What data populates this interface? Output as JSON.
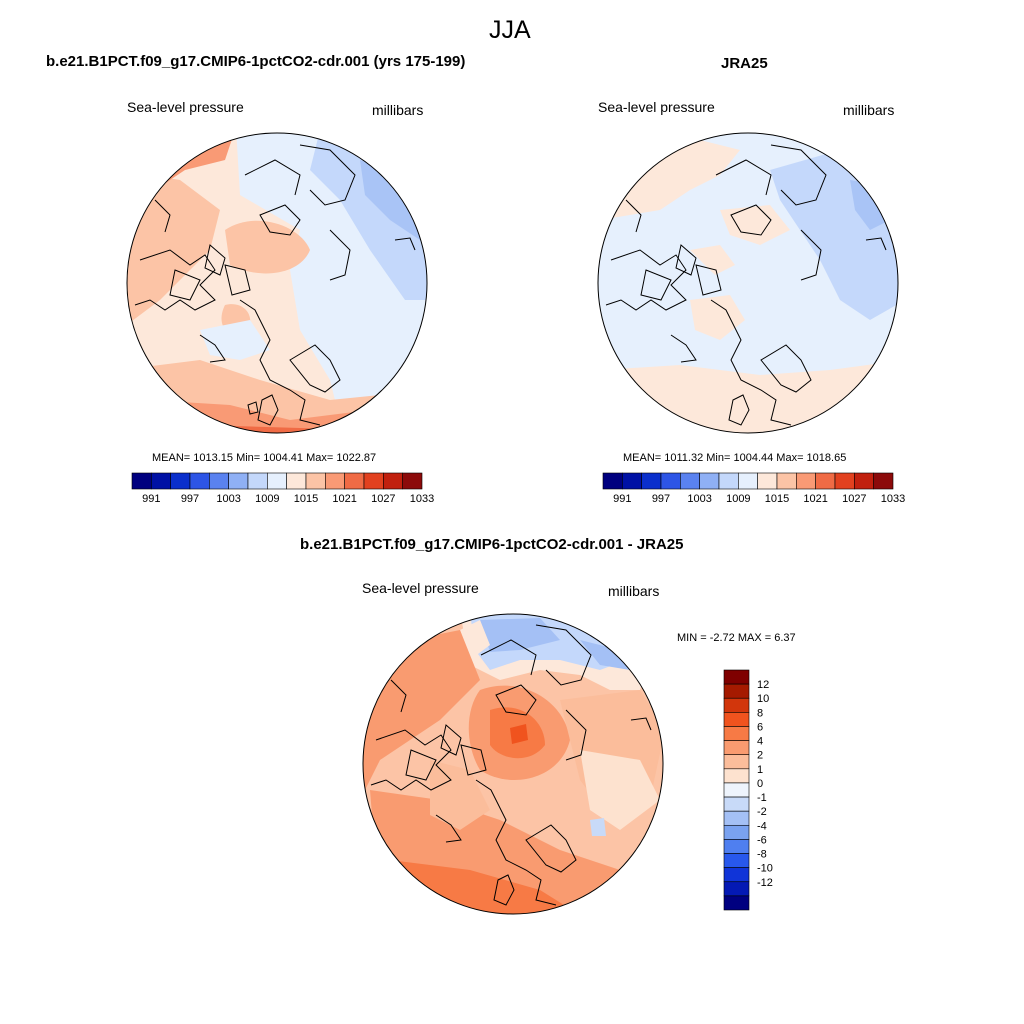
{
  "figure": {
    "season": "JJA"
  },
  "panels": [
    {
      "id": "model",
      "title": "b.e21.B1PCT.f09_g17.CMIP6-1pctCO2-cdr.001 (yrs 175-199)",
      "left_label": "Sea-level pressure",
      "right_label": "millibars",
      "stats": "MEAN= 1013.15  Min= 1004.41  Max= 1022.87"
    },
    {
      "id": "obs",
      "title": "JRA25",
      "left_label": "Sea-level pressure",
      "right_label": "millibars",
      "stats": "MEAN= 1011.32  Min= 1004.44  Max= 1018.65"
    },
    {
      "id": "diff",
      "title": "b.e21.B1PCT.f09_g17.CMIP6-1pctCO2-cdr.001 - JRA25",
      "left_label": "Sea-level pressure",
      "right_label": "millibars",
      "stats": "MIN =  -2.72 MAX =   6.37"
    }
  ],
  "horizontal_colorbar": {
    "colors": [
      "#00007f",
      "#0011a5",
      "#0a2fcc",
      "#2d55e6",
      "#5a82f0",
      "#8fb0f5",
      "#c4d8fb",
      "#e6f0fd",
      "#fde8da",
      "#fcc4a6",
      "#f99a75",
      "#f06b45",
      "#e2411f",
      "#c1200e",
      "#8c0a0a"
    ],
    "tick_labels": [
      "991",
      "997",
      "1003",
      "1009",
      "1015",
      "1021",
      "1027",
      "1033"
    ]
  },
  "vertical_colorbar": {
    "colors": [
      "#7f0000",
      "#a51a00",
      "#d2360c",
      "#f0531e",
      "#f77a45",
      "#f99b70",
      "#fbbd9b",
      "#fde2cf",
      "#eef4fc",
      "#c8daf8",
      "#a4c0f5",
      "#7aa2f0",
      "#4f7ff0",
      "#2858ec",
      "#1034d8",
      "#0419b4",
      "#000080"
    ],
    "tick_labels": [
      "12",
      "10",
      "8",
      "6",
      "4",
      "2",
      "1",
      "0",
      "-1",
      "-2",
      "-4",
      "-6",
      "-8",
      "-10",
      "-12"
    ]
  }
}
